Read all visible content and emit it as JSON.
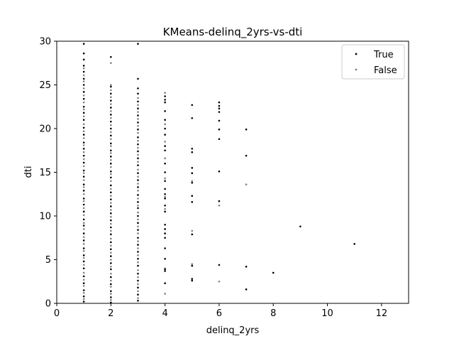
{
  "chart_data": {
    "type": "scatter",
    "title": "KMeans-delinq_2yrs-vs-dti",
    "xlabel": "delinq_2yrs",
    "ylabel": "dti",
    "xlim": [
      0,
      13
    ],
    "ylim": [
      0,
      30
    ],
    "xticks": [
      0,
      2,
      4,
      6,
      8,
      10,
      12
    ],
    "yticks": [
      0,
      5,
      10,
      15,
      20,
      25,
      30
    ],
    "grid": false,
    "legend_position": "top-right",
    "series": [
      {
        "name": "True",
        "color": "#000000",
        "points": [
          [
            1,
            0.2
          ],
          [
            1,
            0.8
          ],
          [
            1,
            1.5
          ],
          [
            1,
            2.3
          ],
          [
            1,
            3.1
          ],
          [
            1,
            4.0
          ],
          [
            1,
            4.8
          ],
          [
            1,
            5.5
          ],
          [
            1,
            6.3
          ],
          [
            1,
            7.2
          ],
          [
            1,
            8.0
          ],
          [
            1,
            8.9
          ],
          [
            1,
            9.6
          ],
          [
            1,
            10.5
          ],
          [
            1,
            11.3
          ],
          [
            1,
            12.0
          ],
          [
            1,
            12.9
          ],
          [
            1,
            13.6
          ],
          [
            1,
            14.5
          ],
          [
            1,
            15.2
          ],
          [
            1,
            16.1
          ],
          [
            1,
            16.9
          ],
          [
            1,
            17.7
          ],
          [
            1,
            18.4
          ],
          [
            1,
            19.3
          ],
          [
            1,
            20.1
          ],
          [
            1,
            21.0
          ],
          [
            1,
            21.8
          ],
          [
            1,
            22.5
          ],
          [
            1,
            23.4
          ],
          [
            1,
            24.2
          ],
          [
            1,
            25.0
          ],
          [
            1,
            25.7
          ],
          [
            1,
            26.5
          ],
          [
            1,
            27.2
          ],
          [
            1,
            27.9
          ],
          [
            1,
            28.6
          ],
          [
            1,
            29.7
          ],
          [
            2,
            0.1
          ],
          [
            2,
            0.7
          ],
          [
            2,
            1.4
          ],
          [
            2,
            2.2
          ],
          [
            2,
            3.0
          ],
          [
            2,
            3.9
          ],
          [
            2,
            4.6
          ],
          [
            2,
            5.4
          ],
          [
            2,
            6.2
          ],
          [
            2,
            7.0
          ],
          [
            2,
            7.9
          ],
          [
            2,
            8.7
          ],
          [
            2,
            9.5
          ],
          [
            2,
            10.3
          ],
          [
            2,
            11.1
          ],
          [
            2,
            11.9
          ],
          [
            2,
            12.7
          ],
          [
            2,
            13.5
          ],
          [
            2,
            14.4
          ],
          [
            2,
            15.1
          ],
          [
            2,
            16.0
          ],
          [
            2,
            16.8
          ],
          [
            2,
            17.5
          ],
          [
            2,
            18.3
          ],
          [
            2,
            19.2
          ],
          [
            2,
            20.0
          ],
          [
            2,
            20.8
          ],
          [
            2,
            21.6
          ],
          [
            2,
            22.4
          ],
          [
            2,
            23.2
          ],
          [
            2,
            24.0
          ],
          [
            2,
            24.8
          ],
          [
            2,
            28.2
          ],
          [
            3,
            0.3
          ],
          [
            3,
            1.0
          ],
          [
            3,
            1.8
          ],
          [
            3,
            2.6
          ],
          [
            3,
            3.4
          ],
          [
            3,
            4.3
          ],
          [
            3,
            5.1
          ],
          [
            3,
            5.9
          ],
          [
            3,
            6.7
          ],
          [
            3,
            7.5
          ],
          [
            3,
            8.4
          ],
          [
            3,
            9.2
          ],
          [
            3,
            10.0
          ],
          [
            3,
            10.9
          ],
          [
            3,
            11.6
          ],
          [
            3,
            12.4
          ],
          [
            3,
            13.3
          ],
          [
            3,
            14.1
          ],
          [
            3,
            14.9
          ],
          [
            3,
            15.8
          ],
          [
            3,
            16.6
          ],
          [
            3,
            17.4
          ],
          [
            3,
            18.2
          ],
          [
            3,
            19.0
          ],
          [
            3,
            19.9
          ],
          [
            3,
            20.7
          ],
          [
            3,
            21.5
          ],
          [
            3,
            22.3
          ],
          [
            3,
            23.1
          ],
          [
            3,
            24.0
          ],
          [
            3,
            24.6
          ],
          [
            3,
            25.7
          ],
          [
            3,
            29.7
          ],
          [
            4,
            2.3
          ],
          [
            4,
            3.7
          ],
          [
            4,
            3.9
          ],
          [
            4,
            5.1
          ],
          [
            4,
            6.3
          ],
          [
            4,
            7.5
          ],
          [
            4,
            8.0
          ],
          [
            4,
            8.5
          ],
          [
            4,
            9.0
          ],
          [
            4,
            10.5
          ],
          [
            4,
            11.2
          ],
          [
            4,
            12.0
          ],
          [
            4,
            12.5
          ],
          [
            4,
            13.1
          ],
          [
            4,
            14.0
          ],
          [
            4,
            15.0
          ],
          [
            4,
            16.0
          ],
          [
            4,
            17.5
          ],
          [
            4,
            18.0
          ],
          [
            4,
            19.3
          ],
          [
            4,
            20.0
          ],
          [
            4,
            21.0
          ],
          [
            4,
            22.0
          ],
          [
            4,
            23.0
          ],
          [
            4,
            23.3
          ],
          [
            4,
            23.7
          ],
          [
            5,
            2.6
          ],
          [
            5,
            2.8
          ],
          [
            5,
            4.3
          ],
          [
            5,
            7.9
          ],
          [
            5,
            11.6
          ],
          [
            5,
            12.3
          ],
          [
            5,
            13.8
          ],
          [
            5,
            14.9
          ],
          [
            5,
            15.5
          ],
          [
            5,
            17.3
          ],
          [
            5,
            17.7
          ],
          [
            5,
            21.2
          ],
          [
            5,
            22.7
          ],
          [
            6,
            4.4
          ],
          [
            6,
            11.7
          ],
          [
            6,
            15.1
          ],
          [
            6,
            18.8
          ],
          [
            6,
            19.9
          ],
          [
            6,
            20.9
          ],
          [
            6,
            21.9
          ],
          [
            6,
            22.3
          ],
          [
            6,
            22.6
          ],
          [
            6,
            23.0
          ],
          [
            7,
            1.6
          ],
          [
            7,
            4.2
          ],
          [
            7,
            16.9
          ],
          [
            7,
            19.9
          ],
          [
            8,
            3.5
          ],
          [
            9,
            8.8
          ],
          [
            11,
            6.8
          ]
        ]
      },
      {
        "name": "False",
        "color": "#808080",
        "points": [
          [
            1,
            0.5
          ],
          [
            1,
            1.2
          ],
          [
            1,
            2.0
          ],
          [
            1,
            2.7
          ],
          [
            1,
            3.5
          ],
          [
            1,
            4.4
          ],
          [
            1,
            5.2
          ],
          [
            1,
            6.0
          ],
          [
            1,
            6.8
          ],
          [
            1,
            7.6
          ],
          [
            1,
            8.5
          ],
          [
            1,
            9.2
          ],
          [
            1,
            10.1
          ],
          [
            1,
            10.9
          ],
          [
            1,
            11.7
          ],
          [
            1,
            12.5
          ],
          [
            1,
            13.3
          ],
          [
            1,
            14.1
          ],
          [
            1,
            14.9
          ],
          [
            1,
            15.7
          ],
          [
            1,
            16.5
          ],
          [
            1,
            17.3
          ],
          [
            1,
            18.1
          ],
          [
            1,
            18.9
          ],
          [
            1,
            19.7
          ],
          [
            1,
            20.5
          ],
          [
            1,
            21.4
          ],
          [
            1,
            22.2
          ],
          [
            1,
            23.0
          ],
          [
            1,
            23.8
          ],
          [
            1,
            24.6
          ],
          [
            1,
            25.4
          ],
          [
            1,
            26.1
          ],
          [
            1,
            26.9
          ],
          [
            2,
            0.4
          ],
          [
            2,
            1.1
          ],
          [
            2,
            1.9
          ],
          [
            2,
            2.6
          ],
          [
            2,
            3.4
          ],
          [
            2,
            4.2
          ],
          [
            2,
            5.0
          ],
          [
            2,
            5.8
          ],
          [
            2,
            6.6
          ],
          [
            2,
            7.4
          ],
          [
            2,
            8.3
          ],
          [
            2,
            9.1
          ],
          [
            2,
            9.9
          ],
          [
            2,
            10.7
          ],
          [
            2,
            11.5
          ],
          [
            2,
            12.3
          ],
          [
            2,
            13.1
          ],
          [
            2,
            14.0
          ],
          [
            2,
            14.8
          ],
          [
            2,
            15.6
          ],
          [
            2,
            16.4
          ],
          [
            2,
            17.2
          ],
          [
            2,
            18.0
          ],
          [
            2,
            18.8
          ],
          [
            2,
            19.6
          ],
          [
            2,
            20.4
          ],
          [
            2,
            21.2
          ],
          [
            2,
            22.0
          ],
          [
            2,
            22.8
          ],
          [
            2,
            23.6
          ],
          [
            2,
            24.4
          ],
          [
            2,
            25.0
          ],
          [
            2,
            27.5
          ],
          [
            3,
            0.6
          ],
          [
            3,
            1.4
          ],
          [
            3,
            2.2
          ],
          [
            3,
            3.0
          ],
          [
            3,
            3.8
          ],
          [
            3,
            4.7
          ],
          [
            3,
            5.5
          ],
          [
            3,
            6.3
          ],
          [
            3,
            7.1
          ],
          [
            3,
            8.0
          ],
          [
            3,
            8.8
          ],
          [
            3,
            9.6
          ],
          [
            3,
            10.4
          ],
          [
            3,
            11.2
          ],
          [
            3,
            12.0
          ],
          [
            3,
            12.9
          ],
          [
            3,
            13.7
          ],
          [
            3,
            14.5
          ],
          [
            3,
            15.3
          ],
          [
            3,
            16.2
          ],
          [
            3,
            17.0
          ],
          [
            3,
            17.8
          ],
          [
            3,
            18.6
          ],
          [
            3,
            19.5
          ],
          [
            3,
            20.3
          ],
          [
            3,
            21.1
          ],
          [
            3,
            21.9
          ],
          [
            3,
            22.7
          ],
          [
            3,
            23.5
          ],
          [
            4,
            1.1
          ],
          [
            4,
            4.0
          ],
          [
            4,
            10.8
          ],
          [
            4,
            12.2
          ],
          [
            4,
            14.3
          ],
          [
            4,
            16.6
          ],
          [
            4,
            18.5
          ],
          [
            4,
            20.5
          ],
          [
            4,
            24.1
          ],
          [
            5,
            4.5
          ],
          [
            5,
            8.3
          ],
          [
            5,
            14.0
          ],
          [
            6,
            2.5
          ],
          [
            6,
            11.2
          ],
          [
            7,
            13.6
          ]
        ]
      }
    ]
  }
}
